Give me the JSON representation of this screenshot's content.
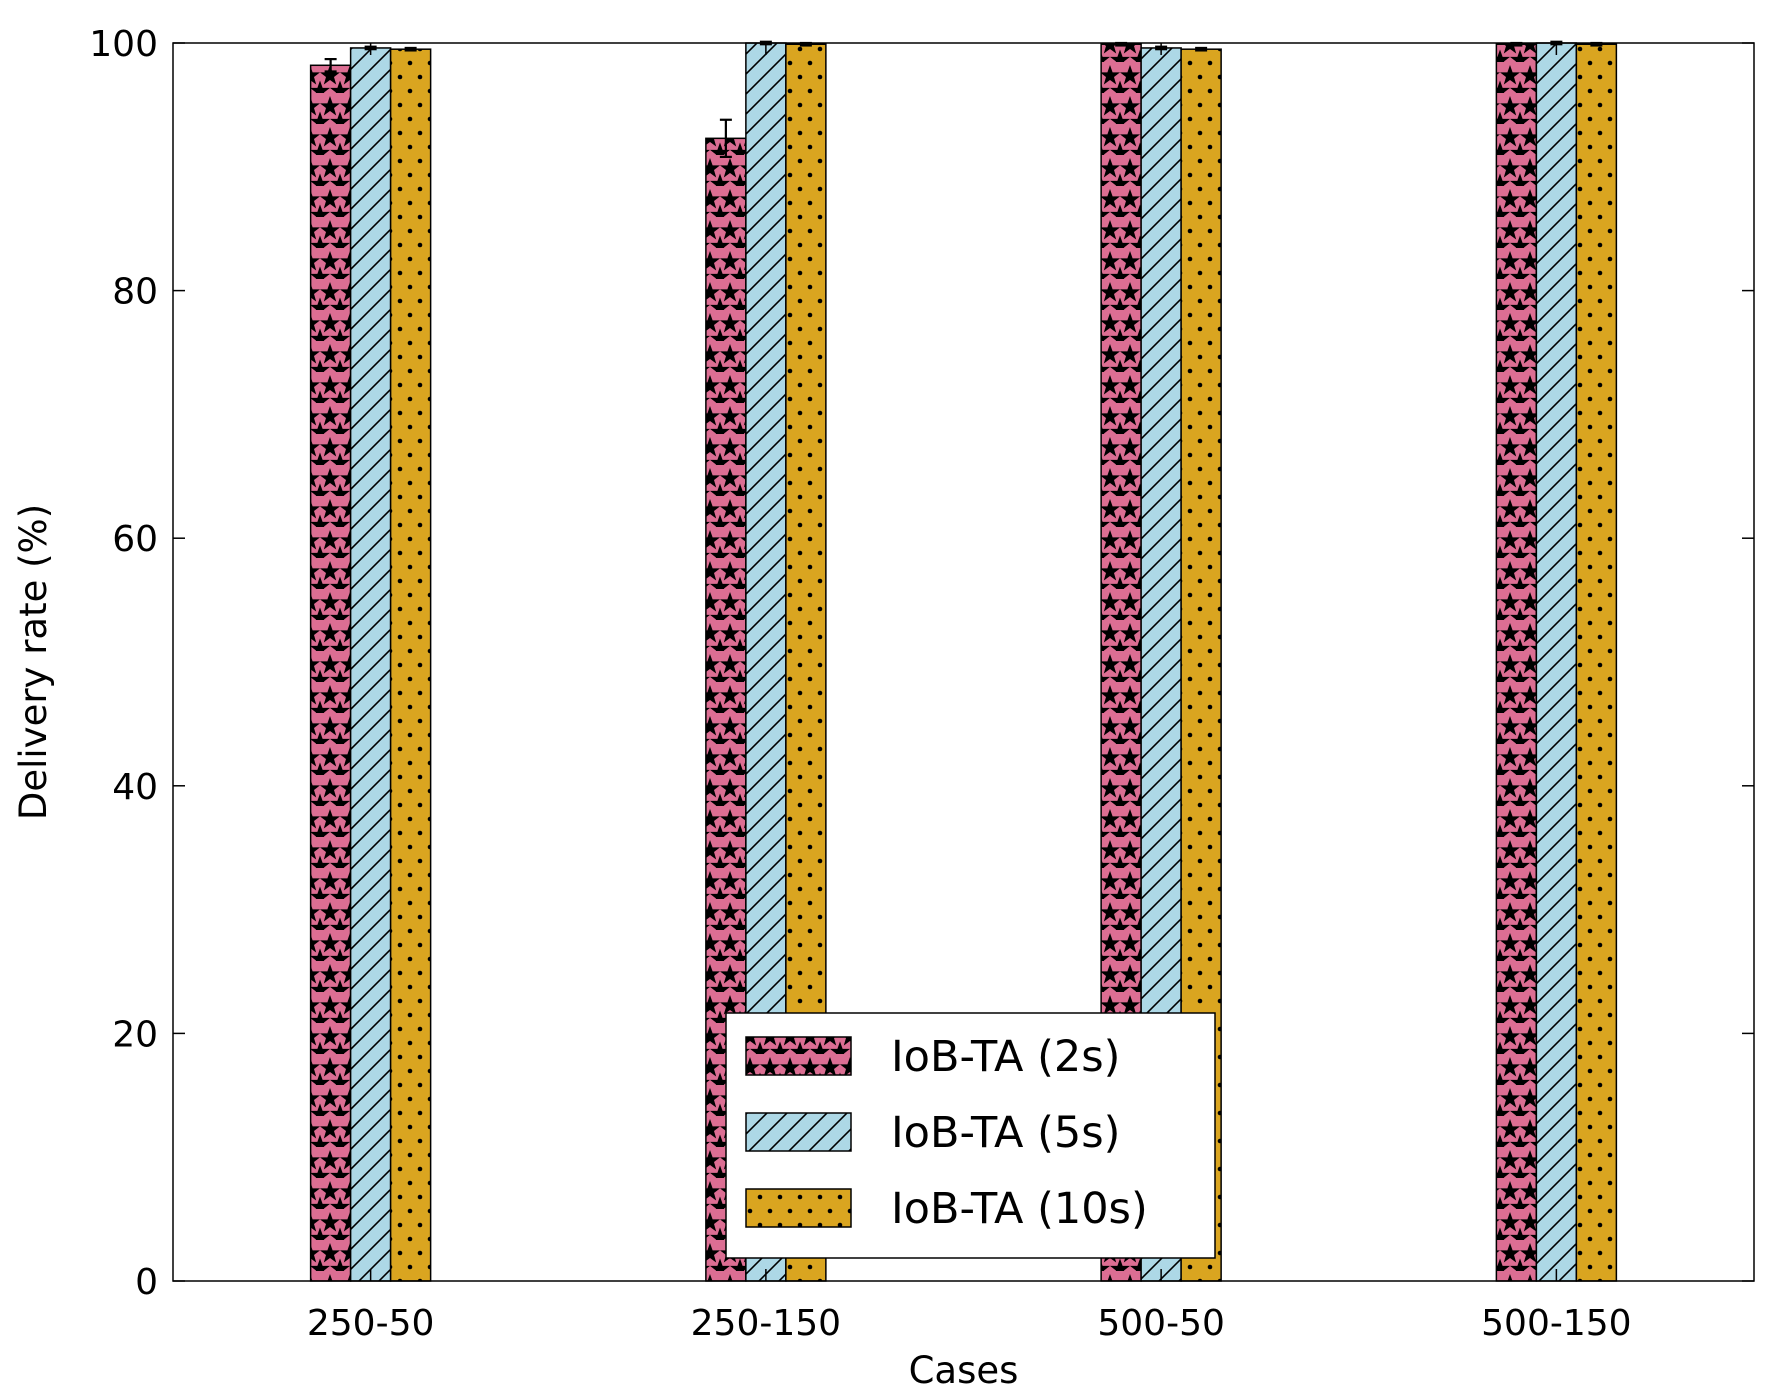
{
  "chart_data": {
    "type": "bar",
    "title": "",
    "xlabel": "Cases",
    "ylabel": "Delivery rate (%)",
    "ylim": [
      0,
      100
    ],
    "yticks": [
      0,
      20,
      40,
      60,
      80,
      100
    ],
    "categories": [
      "250-50",
      "250-150",
      "500-50",
      "500-150"
    ],
    "series": [
      {
        "name": "IoB-TA (2s)",
        "color": "#DC6E93",
        "pattern": "stars",
        "values": [
          98.2,
          92.3,
          99.9,
          99.9
        ],
        "errors": [
          0.5,
          1.5,
          0.1,
          0.1
        ]
      },
      {
        "name": "IoB-TA (5s)",
        "color": "#ADD8E6",
        "pattern": "diagonal-hatch",
        "values": [
          99.6,
          100.0,
          99.6,
          100.0
        ],
        "errors": [
          0.1,
          0.1,
          0.1,
          0.1
        ]
      },
      {
        "name": "IoB-TA (10s)",
        "color": "#DAA520",
        "pattern": "dots",
        "values": [
          99.5,
          99.9,
          99.5,
          99.9
        ],
        "errors": [
          0.1,
          0.1,
          0.1,
          0.1
        ]
      }
    ],
    "legend": {
      "position": "lower-center"
    },
    "grid": false
  }
}
